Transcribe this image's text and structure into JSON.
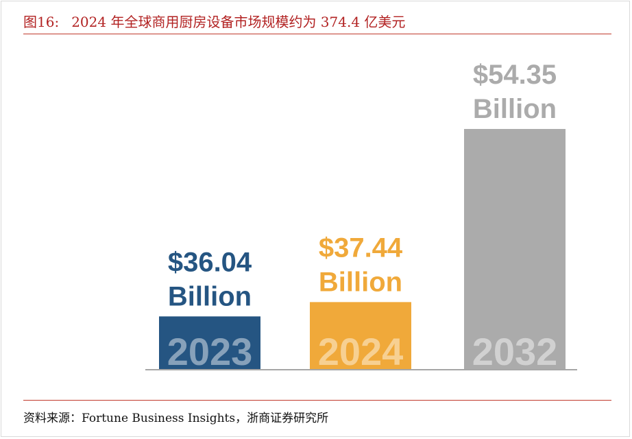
{
  "header": {
    "figure_number": "图16:",
    "title": "2024 年全球商用厨房设备市场规模约为 374.4 亿美元"
  },
  "footer": {
    "source": "资料来源：Fortune Business Insights，浙商证券研究所"
  },
  "colors": {
    "title_red": "#b22222",
    "rule_red": "#c0392b",
    "axis": "#a6a6a6"
  },
  "chart_data": {
    "type": "bar",
    "categories": [
      "2023",
      "2024",
      "2032"
    ],
    "values": [
      36.04,
      37.44,
      54.35
    ],
    "unit": "Billion",
    "data_labels": [
      {
        "amount": "$36.04",
        "unit": "Billion"
      },
      {
        "amount": "$37.44",
        "unit": "Billion"
      },
      {
        "amount": "$54.35",
        "unit": "Billion"
      }
    ],
    "bar_colors": [
      "#255582",
      "#f0a93a",
      "#ababab"
    ],
    "label_colors": [
      "#255582",
      "#f0a93a",
      "#ababab"
    ],
    "ylim": [
      0,
      54.35
    ],
    "grid": false,
    "legend": "none"
  }
}
